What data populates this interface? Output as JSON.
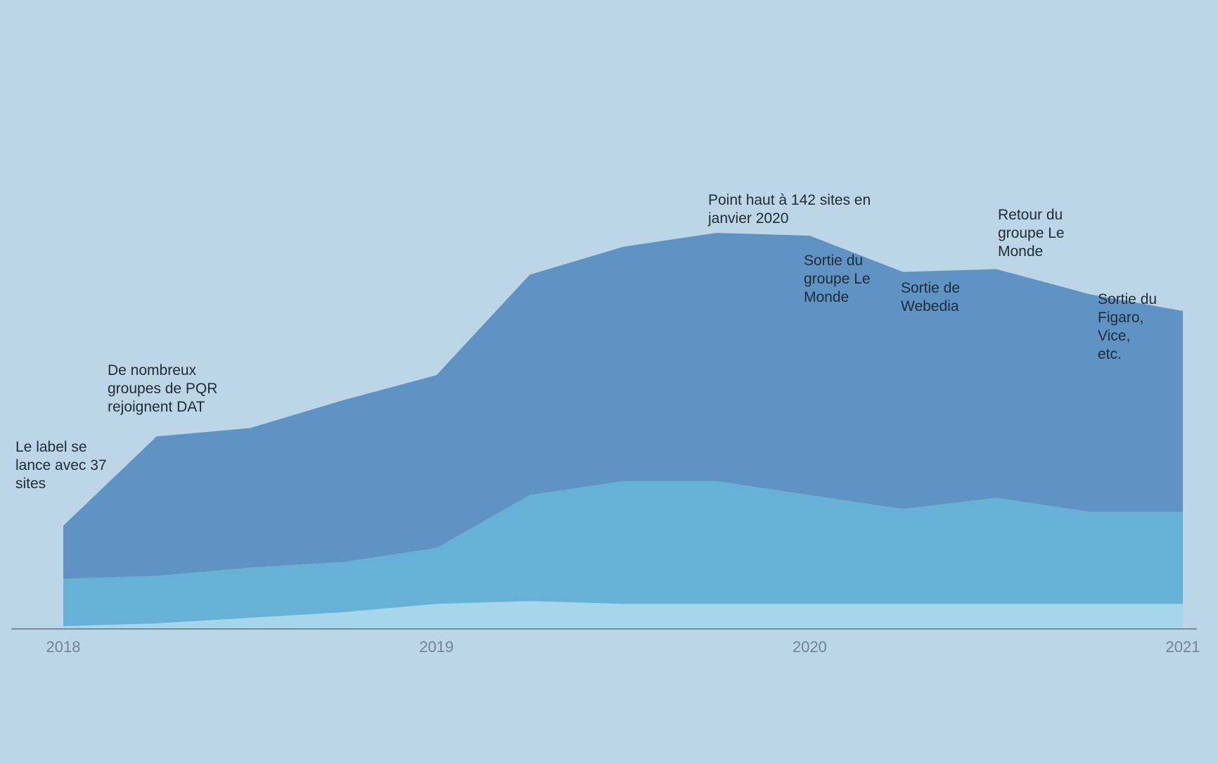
{
  "chart_data": {
    "type": "area",
    "stacked": true,
    "title": "",
    "xlabel": "",
    "ylabel": "",
    "xlim": [
      "2018-01",
      "2021-01"
    ],
    "ylim": [
      0,
      142
    ],
    "x": [
      "2018-01",
      "2018-04",
      "2018-07",
      "2018-10",
      "2019-01",
      "2019-04",
      "2019-07",
      "2019-10",
      "2020-01",
      "2020-04",
      "2020-07",
      "2020-10",
      "2021-01"
    ],
    "series": [
      {
        "color": "#a6d6ea",
        "values": [
          1,
          2,
          4,
          6,
          9,
          10,
          9,
          9,
          9,
          9,
          9,
          9,
          9
        ]
      },
      {
        "color": "#66b1d5",
        "values": [
          17,
          17,
          18,
          18,
          20,
          38,
          44,
          44,
          39,
          34,
          38,
          33,
          33
        ]
      },
      {
        "color": "#5e93c3",
        "values": [
          19,
          50,
          50,
          58,
          62,
          79,
          84,
          89,
          93,
          85,
          82,
          78,
          72
        ]
      }
    ],
    "x_ticks": [
      "2018",
      "2019",
      "2020",
      "2021"
    ],
    "grid": false,
    "legend": "none",
    "annotations": [
      {
        "lines": [
          "Le label se",
          "lance avec 37",
          "sites"
        ]
      },
      {
        "lines": [
          "De nombreux",
          "groupes de PQR",
          "rejoignent DAT"
        ]
      },
      {
        "lines": [
          "Point haut à 142 sites en",
          "janvier 2020"
        ]
      },
      {
        "lines": [
          "Sortie du",
          "groupe Le",
          "Monde"
        ]
      },
      {
        "lines": [
          "Sortie de",
          "Webedia"
        ]
      },
      {
        "lines": [
          "Retour du",
          "groupe Le",
          "Monde"
        ]
      },
      {
        "lines": [
          "Sortie du",
          "Figaro,",
          "Vice,",
          "etc."
        ]
      }
    ]
  }
}
